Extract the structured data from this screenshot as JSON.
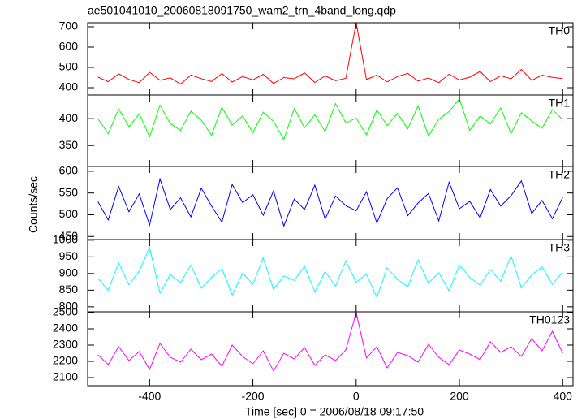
{
  "title": "ae501041010_20060818091750_wam2_trn_4band_long.qdp",
  "ylabel": "Counts/sec",
  "xlabel": "Time [sec] 0 = 2006/08/18 09:17:50",
  "chart_data": [
    {
      "type": "line",
      "series": [
        {
          "name": "TH0",
          "color": "#ff0000",
          "values": [
            452,
            430,
            468,
            441,
            425,
            476,
            437,
            449,
            418,
            462,
            445,
            431,
            470,
            428,
            455,
            439,
            466,
            421,
            450,
            444,
            473,
            426,
            458,
            435,
            447,
            720,
            440,
            462,
            429,
            455,
            471,
            433,
            448,
            425,
            467,
            438,
            452,
            480,
            430,
            459,
            444,
            490,
            436,
            462,
            451,
            445
          ]
        }
      ],
      "x": [
        -500,
        -480,
        -460,
        -440,
        -420,
        -400,
        -380,
        -360,
        -340,
        -320,
        -300,
        -280,
        -260,
        -240,
        -220,
        -200,
        -180,
        -160,
        -140,
        -120,
        -100,
        -80,
        -60,
        -40,
        -20,
        0,
        20,
        40,
        60,
        80,
        100,
        120,
        140,
        160,
        180,
        200,
        220,
        240,
        260,
        280,
        300,
        320,
        340,
        360,
        380,
        400
      ],
      "xlim": [
        -520,
        420
      ],
      "ylim": [
        364,
        720
      ],
      "yticks": [
        400,
        500,
        600,
        700
      ]
    },
    {
      "type": "line",
      "series": [
        {
          "name": "TH1",
          "color": "#00ff00",
          "values": [
            400,
            372,
            418,
            385,
            409,
            366,
            425,
            391,
            378,
            414,
            397,
            369,
            421,
            388,
            405,
            374,
            412,
            395,
            361,
            419,
            383,
            407,
            376,
            428,
            392,
            401,
            370,
            416,
            387,
            410,
            381,
            424,
            368,
            399,
            413,
            437,
            378,
            405,
            390,
            420,
            372,
            411,
            396,
            382,
            417,
            398
          ]
        }
      ],
      "x": [
        -500,
        -480,
        -460,
        -440,
        -420,
        -400,
        -380,
        -360,
        -340,
        -320,
        -300,
        -280,
        -260,
        -240,
        -220,
        -200,
        -180,
        -160,
        -140,
        -120,
        -100,
        -80,
        -60,
        -40,
        -20,
        0,
        20,
        40,
        60,
        80,
        100,
        120,
        140,
        160,
        180,
        200,
        220,
        240,
        260,
        280,
        300,
        320,
        340,
        360,
        380,
        400
      ],
      "xlim": [
        -520,
        420
      ],
      "ylim": [
        311,
        444
      ],
      "yticks": [
        350,
        400
      ]
    },
    {
      "type": "line",
      "series": [
        {
          "name": "TH2",
          "color": "#0000ff",
          "values": [
            530,
            488,
            565,
            507,
            548,
            476,
            582,
            512,
            539,
            495,
            561,
            520,
            483,
            570,
            528,
            546,
            499,
            555,
            474,
            536,
            512,
            568,
            490,
            543,
            521,
            509,
            553,
            481,
            537,
            562,
            498,
            527,
            549,
            486,
            575,
            514,
            531,
            493,
            558,
            520,
            544,
            578,
            503,
            533,
            491,
            540
          ]
        }
      ],
      "x": [
        -500,
        -480,
        -460,
        -440,
        -420,
        -400,
        -380,
        -360,
        -340,
        -320,
        -300,
        -280,
        -260,
        -240,
        -220,
        -200,
        -180,
        -160,
        -140,
        -120,
        -100,
        -80,
        -60,
        -40,
        -20,
        0,
        20,
        40,
        60,
        80,
        100,
        120,
        140,
        160,
        180,
        200,
        220,
        240,
        260,
        280,
        300,
        320,
        340,
        360,
        380,
        400
      ],
      "xlim": [
        -520,
        420
      ],
      "ylim": [
        443,
        611
      ],
      "yticks": [
        450,
        500,
        550,
        600
      ]
    },
    {
      "type": "line",
      "series": [
        {
          "name": "TH3",
          "color": "#00ffff",
          "values": [
            885,
            850,
            932,
            866,
            908,
            978,
            841,
            897,
            872,
            925,
            856,
            889,
            914,
            836,
            901,
            868,
            947,
            852,
            893,
            879,
            921,
            845,
            906,
            862,
            938,
            874,
            898,
            829,
            917,
            883,
            860,
            941,
            871,
            902,
            848,
            926,
            888,
            865,
            912,
            877,
            953,
            857,
            896,
            920,
            868,
            905
          ]
        }
      ],
      "x": [
        -500,
        -480,
        -460,
        -440,
        -420,
        -400,
        -380,
        -360,
        -340,
        -320,
        -300,
        -280,
        -260,
        -240,
        -220,
        -200,
        -180,
        -160,
        -140,
        -120,
        -100,
        -80,
        -60,
        -40,
        -20,
        0,
        20,
        40,
        60,
        80,
        100,
        120,
        140,
        160,
        180,
        200,
        220,
        240,
        260,
        280,
        300,
        320,
        340,
        360,
        380,
        400
      ],
      "xlim": [
        -520,
        420
      ],
      "ylim": [
        785,
        1002
      ],
      "yticks": [
        800,
        850,
        900,
        950,
        1000
      ]
    },
    {
      "type": "line",
      "series": [
        {
          "name": "TH0123",
          "color": "#ff00ff",
          "values": [
            2240,
            2180,
            2290,
            2205,
            2260,
            2150,
            2310,
            2225,
            2195,
            2275,
            2210,
            2245,
            2170,
            2300,
            2230,
            2185,
            2265,
            2140,
            2250,
            2215,
            2285,
            2175,
            2240,
            2205,
            2270,
            2500,
            2220,
            2290,
            2160,
            2255,
            2235,
            2195,
            2305,
            2225,
            2180,
            2270,
            2245,
            2210,
            2320,
            2255,
            2290,
            2230,
            2340,
            2265,
            2385,
            2250
          ]
        }
      ],
      "x": [
        -500,
        -480,
        -460,
        -440,
        -420,
        -400,
        -380,
        -360,
        -340,
        -320,
        -300,
        -280,
        -260,
        -240,
        -220,
        -200,
        -180,
        -160,
        -140,
        -120,
        -100,
        -80,
        -60,
        -40,
        -20,
        0,
        20,
        40,
        60,
        80,
        100,
        120,
        140,
        160,
        180,
        200,
        220,
        240,
        260,
        280,
        300,
        320,
        340,
        360,
        380,
        400
      ],
      "xlim": [
        -520,
        420
      ],
      "ylim": [
        2050,
        2505
      ],
      "yticks": [
        2100,
        2200,
        2300,
        2400,
        2500
      ],
      "xticks": [
        -400,
        -200,
        0,
        200,
        400
      ]
    }
  ]
}
